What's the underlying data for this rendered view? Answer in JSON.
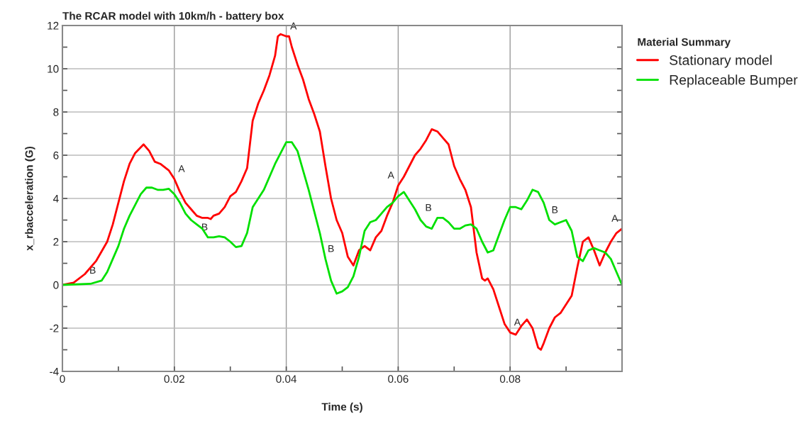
{
  "chart_data": {
    "type": "line",
    "title": "The RCAR model with 10km/h - battery box",
    "xlabel": "Time (s)",
    "ylabel": "x_rbacceleration (G)",
    "legend_title": "Material Summary",
    "legend": "right",
    "grid": true,
    "line_style": "solid",
    "xlim": [
      0,
      0.1
    ],
    "ylim": [
      -4,
      12
    ],
    "xticks": [
      0,
      {
        "value": 0.01,
        "label": null
      },
      {
        "value": 0.02,
        "label": "0.02"
      },
      {
        "value": 0.03,
        "label": null
      },
      {
        "value": 0.04,
        "label": "0.04"
      },
      {
        "value": 0.05,
        "label": null
      },
      {
        "value": 0.06,
        "label": "0.06"
      },
      {
        "value": 0.07,
        "label": null
      },
      {
        "value": 0.08,
        "label": "0.08"
      },
      {
        "value": 0.09,
        "label": null
      }
    ],
    "yticks": [
      -4,
      {
        "value": -3,
        "label": null
      },
      -2,
      {
        "value": -1,
        "label": null
      },
      0,
      {
        "value": 1,
        "label": null
      },
      2,
      {
        "value": 3,
        "label": null
      },
      4,
      {
        "value": 5,
        "label": null
      },
      6,
      {
        "value": 7,
        "label": null
      },
      8,
      {
        "value": 9,
        "label": null
      },
      10,
      {
        "value": 11,
        "label": null
      },
      12
    ],
    "series": [
      {
        "name": "Stationary model",
        "color": "#ff0000",
        "x": [
          0,
          0.002,
          0.004,
          0.006,
          0.008,
          0.009,
          0.01,
          0.011,
          0.012,
          0.013,
          0.0145,
          0.0155,
          0.0165,
          0.0175,
          0.019,
          0.02,
          0.021,
          0.022,
          0.023,
          0.024,
          0.025,
          0.026,
          0.0265,
          0.027,
          0.028,
          0.029,
          0.03,
          0.031,
          0.032,
          0.033,
          0.0335,
          0.034,
          0.035,
          0.036,
          0.037,
          0.038,
          0.0385,
          0.039,
          0.04,
          0.0405,
          0.041,
          0.042,
          0.043,
          0.044,
          0.045,
          0.046,
          0.047,
          0.048,
          0.049,
          0.05,
          0.051,
          0.052,
          0.053,
          0.054,
          0.055,
          0.056,
          0.057,
          0.058,
          0.059,
          0.06,
          0.061,
          0.062,
          0.063,
          0.064,
          0.065,
          0.066,
          0.067,
          0.068,
          0.069,
          0.07,
          0.071,
          0.072,
          0.073,
          0.074,
          0.075,
          0.0755,
          0.076,
          0.077,
          0.078,
          0.079,
          0.08,
          0.081,
          0.082,
          0.083,
          0.084,
          0.085,
          0.0855,
          0.086,
          0.087,
          0.088,
          0.089,
          0.09,
          0.091,
          0.092,
          0.093,
          0.094,
          0.095,
          0.096,
          0.097,
          0.098,
          0.099,
          0.1
        ],
        "values": [
          0,
          0.1,
          0.5,
          1.1,
          2.0,
          2.8,
          3.8,
          4.8,
          5.6,
          6.1,
          6.5,
          6.2,
          5.7,
          5.6,
          5.3,
          4.9,
          4.3,
          3.8,
          3.5,
          3.2,
          3.1,
          3.1,
          3.05,
          3.2,
          3.3,
          3.6,
          4.1,
          4.3,
          4.8,
          5.4,
          6.5,
          7.6,
          8.4,
          9.0,
          9.7,
          10.6,
          11.5,
          11.6,
          11.5,
          11.5,
          11.0,
          10.2,
          9.5,
          8.6,
          7.9,
          7.1,
          5.5,
          4.0,
          3.0,
          2.4,
          1.3,
          0.9,
          1.6,
          1.8,
          1.6,
          2.2,
          2.5,
          3.2,
          3.8,
          4.6,
          5.0,
          5.5,
          6.0,
          6.3,
          6.7,
          7.2,
          7.1,
          6.8,
          6.5,
          5.5,
          4.9,
          4.4,
          3.6,
          1.5,
          0.3,
          0.2,
          0.3,
          -0.2,
          -1.0,
          -1.8,
          -2.2,
          -2.3,
          -1.9,
          -1.6,
          -2.0,
          -2.9,
          -3.0,
          -2.7,
          -2.0,
          -1.5,
          -1.3,
          -0.9,
          -0.5,
          0.8,
          2.0,
          2.2,
          1.6,
          0.9,
          1.5,
          2.0,
          2.4,
          2.6
        ]
      },
      {
        "name": "Replaceable Bumper",
        "color": "#00e000",
        "x": [
          0,
          0.005,
          0.007,
          0.008,
          0.009,
          0.01,
          0.011,
          0.012,
          0.013,
          0.014,
          0.015,
          0.016,
          0.017,
          0.018,
          0.019,
          0.02,
          0.021,
          0.022,
          0.023,
          0.024,
          0.025,
          0.026,
          0.027,
          0.028,
          0.029,
          0.03,
          0.031,
          0.032,
          0.033,
          0.034,
          0.035,
          0.036,
          0.037,
          0.038,
          0.039,
          0.04,
          0.041,
          0.042,
          0.043,
          0.044,
          0.045,
          0.046,
          0.047,
          0.048,
          0.049,
          0.05,
          0.051,
          0.052,
          0.053,
          0.054,
          0.055,
          0.056,
          0.057,
          0.058,
          0.059,
          0.06,
          0.061,
          0.062,
          0.063,
          0.064,
          0.065,
          0.066,
          0.067,
          0.068,
          0.069,
          0.07,
          0.071,
          0.072,
          0.073,
          0.074,
          0.075,
          0.076,
          0.077,
          0.078,
          0.079,
          0.08,
          0.081,
          0.082,
          0.083,
          0.084,
          0.085,
          0.086,
          0.087,
          0.088,
          0.089,
          0.09,
          0.091,
          0.092,
          0.093,
          0.094,
          0.095,
          0.096,
          0.097,
          0.098,
          0.099,
          0.1
        ],
        "values": [
          0,
          0.05,
          0.2,
          0.6,
          1.2,
          1.8,
          2.6,
          3.2,
          3.7,
          4.2,
          4.5,
          4.5,
          4.4,
          4.4,
          4.45,
          4.2,
          3.8,
          3.3,
          3.0,
          2.8,
          2.6,
          2.2,
          2.2,
          2.25,
          2.2,
          2.0,
          1.75,
          1.8,
          2.4,
          3.6,
          4.0,
          4.4,
          5.0,
          5.6,
          6.1,
          6.6,
          6.6,
          6.2,
          5.3,
          4.4,
          3.4,
          2.4,
          1.2,
          0.2,
          -0.4,
          -0.3,
          -0.1,
          0.4,
          1.3,
          2.5,
          2.9,
          3.0,
          3.3,
          3.6,
          3.8,
          4.1,
          4.3,
          3.9,
          3.5,
          3.0,
          2.7,
          2.6,
          3.1,
          3.1,
          2.9,
          2.6,
          2.6,
          2.75,
          2.8,
          2.6,
          2.0,
          1.5,
          1.6,
          2.3,
          3.0,
          3.6,
          3.6,
          3.5,
          3.9,
          4.4,
          4.3,
          3.8,
          3.0,
          2.8,
          2.9,
          3.0,
          2.5,
          1.3,
          1.1,
          1.6,
          1.7,
          1.6,
          1.5,
          1.2,
          0.6,
          0.0
        ]
      }
    ],
    "annotations": [
      {
        "text": "A",
        "x": 0.02,
        "y": 4.9
      },
      {
        "text": "A",
        "x": 0.04,
        "y": 11.5
      },
      {
        "text": "A",
        "x": 0.06,
        "y": 4.6
      },
      {
        "text": "A",
        "x": 0.08,
        "y": -2.2
      },
      {
        "text": "A",
        "x": 0.1,
        "y": 2.6
      },
      {
        "text": "B",
        "x": 0.0067,
        "y": 0.2
      },
      {
        "text": "B",
        "x": 0.0267,
        "y": 2.2
      },
      {
        "text": "B",
        "x": 0.0467,
        "y": 1.2
      },
      {
        "text": "B",
        "x": 0.0667,
        "y": 3.1
      },
      {
        "text": "B",
        "x": 0.0867,
        "y": 3.0
      }
    ]
  }
}
